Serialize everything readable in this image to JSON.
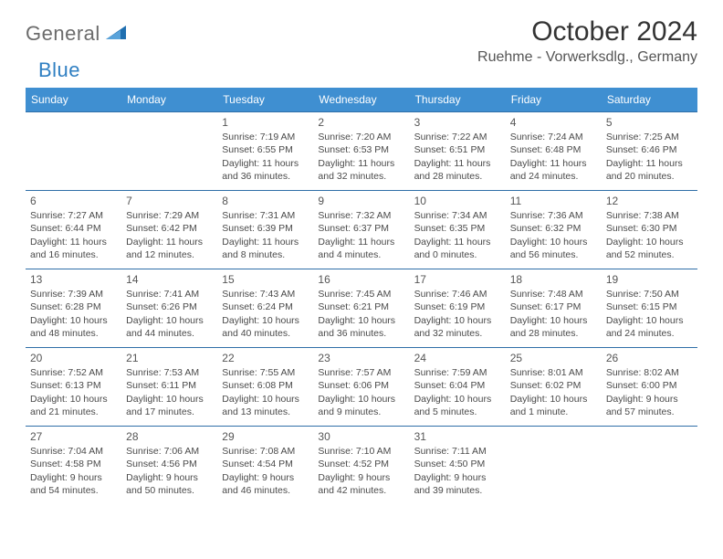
{
  "brand": {
    "part1": "General",
    "part2": "Blue"
  },
  "title": "October 2024",
  "location": "Ruehme - Vorwerksdlg., Germany",
  "colors": {
    "header_bg": "#3f8fd1",
    "header_text": "#ffffff",
    "row_border": "#2f6fa8",
    "body_text": "#4a4a4a",
    "brand_gray": "#6b6b6b",
    "brand_blue": "#2f7fc2",
    "page_bg": "#ffffff"
  },
  "typography": {
    "title_fontsize": 30,
    "location_fontsize": 16,
    "header_fontsize": 12,
    "cell_fontsize": 10.5,
    "daynum_fontsize": 12
  },
  "day_headers": [
    "Sunday",
    "Monday",
    "Tuesday",
    "Wednesday",
    "Thursday",
    "Friday",
    "Saturday"
  ],
  "weeks": [
    [
      null,
      null,
      {
        "n": "1",
        "sunrise": "7:19 AM",
        "sunset": "6:55 PM",
        "daylight": "11 hours and 36 minutes."
      },
      {
        "n": "2",
        "sunrise": "7:20 AM",
        "sunset": "6:53 PM",
        "daylight": "11 hours and 32 minutes."
      },
      {
        "n": "3",
        "sunrise": "7:22 AM",
        "sunset": "6:51 PM",
        "daylight": "11 hours and 28 minutes."
      },
      {
        "n": "4",
        "sunrise": "7:24 AM",
        "sunset": "6:48 PM",
        "daylight": "11 hours and 24 minutes."
      },
      {
        "n": "5",
        "sunrise": "7:25 AM",
        "sunset": "6:46 PM",
        "daylight": "11 hours and 20 minutes."
      }
    ],
    [
      {
        "n": "6",
        "sunrise": "7:27 AM",
        "sunset": "6:44 PM",
        "daylight": "11 hours and 16 minutes."
      },
      {
        "n": "7",
        "sunrise": "7:29 AM",
        "sunset": "6:42 PM",
        "daylight": "11 hours and 12 minutes."
      },
      {
        "n": "8",
        "sunrise": "7:31 AM",
        "sunset": "6:39 PM",
        "daylight": "11 hours and 8 minutes."
      },
      {
        "n": "9",
        "sunrise": "7:32 AM",
        "sunset": "6:37 PM",
        "daylight": "11 hours and 4 minutes."
      },
      {
        "n": "10",
        "sunrise": "7:34 AM",
        "sunset": "6:35 PM",
        "daylight": "11 hours and 0 minutes."
      },
      {
        "n": "11",
        "sunrise": "7:36 AM",
        "sunset": "6:32 PM",
        "daylight": "10 hours and 56 minutes."
      },
      {
        "n": "12",
        "sunrise": "7:38 AM",
        "sunset": "6:30 PM",
        "daylight": "10 hours and 52 minutes."
      }
    ],
    [
      {
        "n": "13",
        "sunrise": "7:39 AM",
        "sunset": "6:28 PM",
        "daylight": "10 hours and 48 minutes."
      },
      {
        "n": "14",
        "sunrise": "7:41 AM",
        "sunset": "6:26 PM",
        "daylight": "10 hours and 44 minutes."
      },
      {
        "n": "15",
        "sunrise": "7:43 AM",
        "sunset": "6:24 PM",
        "daylight": "10 hours and 40 minutes."
      },
      {
        "n": "16",
        "sunrise": "7:45 AM",
        "sunset": "6:21 PM",
        "daylight": "10 hours and 36 minutes."
      },
      {
        "n": "17",
        "sunrise": "7:46 AM",
        "sunset": "6:19 PM",
        "daylight": "10 hours and 32 minutes."
      },
      {
        "n": "18",
        "sunrise": "7:48 AM",
        "sunset": "6:17 PM",
        "daylight": "10 hours and 28 minutes."
      },
      {
        "n": "19",
        "sunrise": "7:50 AM",
        "sunset": "6:15 PM",
        "daylight": "10 hours and 24 minutes."
      }
    ],
    [
      {
        "n": "20",
        "sunrise": "7:52 AM",
        "sunset": "6:13 PM",
        "daylight": "10 hours and 21 minutes."
      },
      {
        "n": "21",
        "sunrise": "7:53 AM",
        "sunset": "6:11 PM",
        "daylight": "10 hours and 17 minutes."
      },
      {
        "n": "22",
        "sunrise": "7:55 AM",
        "sunset": "6:08 PM",
        "daylight": "10 hours and 13 minutes."
      },
      {
        "n": "23",
        "sunrise": "7:57 AM",
        "sunset": "6:06 PM",
        "daylight": "10 hours and 9 minutes."
      },
      {
        "n": "24",
        "sunrise": "7:59 AM",
        "sunset": "6:04 PM",
        "daylight": "10 hours and 5 minutes."
      },
      {
        "n": "25",
        "sunrise": "8:01 AM",
        "sunset": "6:02 PM",
        "daylight": "10 hours and 1 minute."
      },
      {
        "n": "26",
        "sunrise": "8:02 AM",
        "sunset": "6:00 PM",
        "daylight": "9 hours and 57 minutes."
      }
    ],
    [
      {
        "n": "27",
        "sunrise": "7:04 AM",
        "sunset": "4:58 PM",
        "daylight": "9 hours and 54 minutes."
      },
      {
        "n": "28",
        "sunrise": "7:06 AM",
        "sunset": "4:56 PM",
        "daylight": "9 hours and 50 minutes."
      },
      {
        "n": "29",
        "sunrise": "7:08 AM",
        "sunset": "4:54 PM",
        "daylight": "9 hours and 46 minutes."
      },
      {
        "n": "30",
        "sunrise": "7:10 AM",
        "sunset": "4:52 PM",
        "daylight": "9 hours and 42 minutes."
      },
      {
        "n": "31",
        "sunrise": "7:11 AM",
        "sunset": "4:50 PM",
        "daylight": "9 hours and 39 minutes."
      },
      null,
      null
    ]
  ],
  "labels": {
    "sunrise": "Sunrise:",
    "sunset": "Sunset:",
    "daylight": "Daylight:"
  }
}
